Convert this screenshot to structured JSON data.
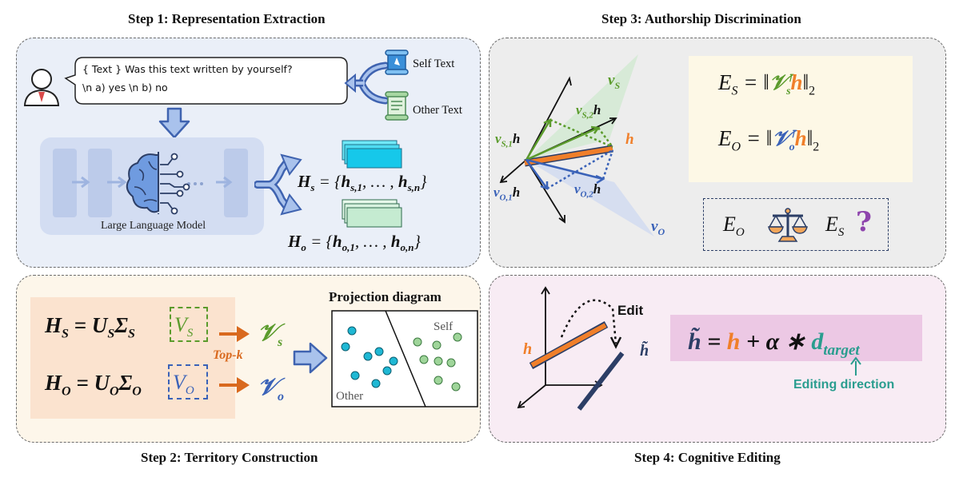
{
  "steps": {
    "step1": "Step 1: Representation Extraction",
    "step2": "Step 2: Territory Construction",
    "step3": "Step 3: Authorship Discrimination",
    "step4": "Step 4: Cognitive Editing"
  },
  "panel1": {
    "prompt_line1": "{ Text } Was this text written by yourself?",
    "prompt_line2": "\\n a) yes \\n b) no",
    "self_text": "Self Text",
    "other_text": "Other Text",
    "llm_label": "Large Language Model"
  },
  "panel2": {
    "projection_title": "Projection diagram",
    "region_self": "Self",
    "region_other": "Other",
    "topk": "Top-k"
  },
  "panel4": {
    "edit_label": "Edit",
    "editing_direction": "Editing direction"
  },
  "colors": {
    "green": "#5b9b2c",
    "blue": "#3a62b8",
    "orange": "#f07f2a",
    "navy": "#2c3e66",
    "teal": "#2a9d8f",
    "cyan_dot": "#1fb8d4",
    "green_dot": "#9fd59a"
  }
}
